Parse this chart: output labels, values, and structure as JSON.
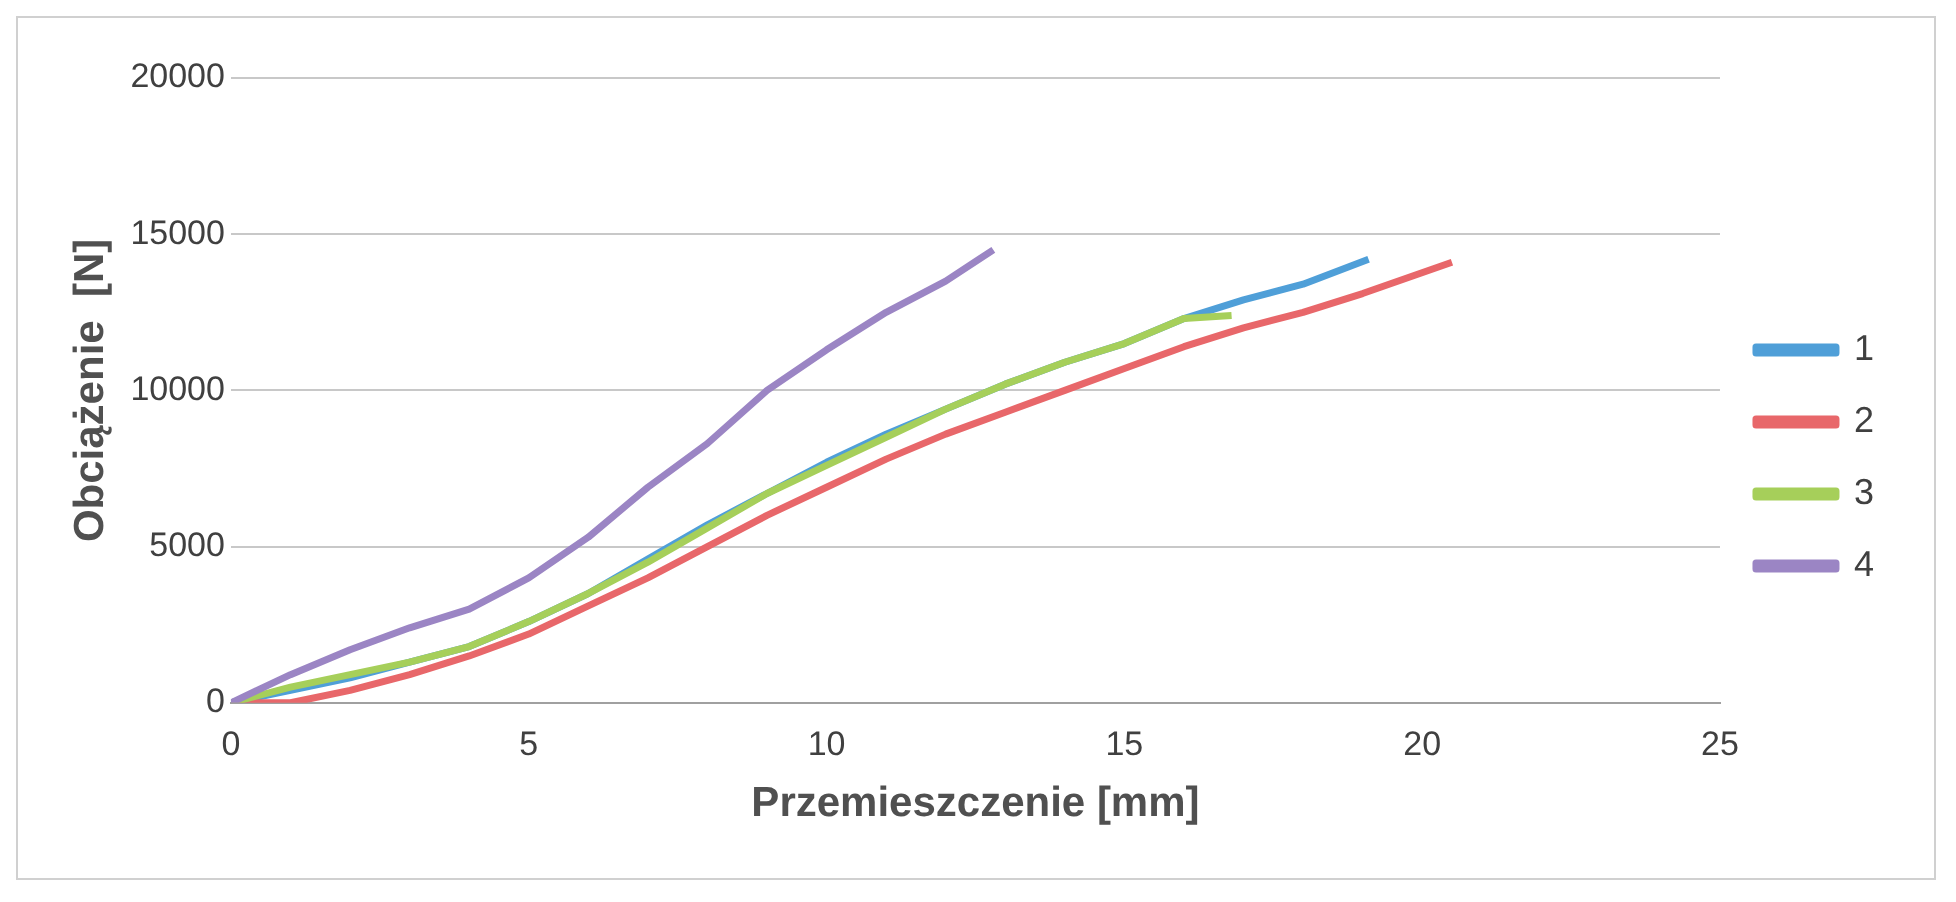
{
  "chart_data": {
    "type": "line",
    "xlabel": "Przemieszczenie [mm]",
    "ylabel": "Obciążenie  [N]",
    "xlim": [
      0,
      25
    ],
    "xticks": [
      0,
      5,
      10,
      15,
      20,
      25
    ],
    "ylim": [
      0,
      20000
    ],
    "yticks": [
      0,
      5000,
      10000,
      15000,
      20000
    ],
    "grid": "y",
    "legend": "right",
    "marker": "none",
    "series": [
      {
        "name": "1",
        "color": "#4f9fd8",
        "x": [
          0,
          1,
          2,
          3,
          4,
          5,
          6,
          7,
          8,
          9,
          10,
          11,
          12,
          13,
          14,
          15,
          16,
          17,
          18,
          19.1
        ],
        "values": [
          0,
          400,
          800,
          1300,
          1800,
          2600,
          3500,
          4600,
          5700,
          6700,
          7700,
          8600,
          9400,
          10200,
          10900,
          11500,
          12300,
          12900,
          13400,
          14200
        ]
      },
      {
        "name": "2",
        "color": "#e8676a",
        "x": [
          0,
          1,
          2,
          3,
          4,
          5,
          6,
          7,
          8,
          9,
          10,
          11,
          12,
          13,
          14,
          15,
          16,
          17,
          18,
          19,
          20.5
        ],
        "values": [
          0,
          0,
          400,
          900,
          1500,
          2200,
          3100,
          4000,
          5000,
          6000,
          6900,
          7800,
          8600,
          9300,
          10000,
          10700,
          11400,
          12000,
          12500,
          13100,
          14100
        ]
      },
      {
        "name": "3",
        "color": "#a6cf5a",
        "x": [
          0,
          1,
          2,
          3,
          4,
          5,
          6,
          7,
          8,
          9,
          10,
          11,
          12,
          13,
          14,
          15,
          16,
          16.8
        ],
        "values": [
          0,
          500,
          900,
          1300,
          1800,
          2600,
          3500,
          4500,
          5600,
          6700,
          7600,
          8500,
          9400,
          10200,
          10900,
          11500,
          12300,
          12400
        ]
      },
      {
        "name": "4",
        "color": "#9b85c4",
        "x": [
          0,
          1,
          2,
          3,
          4,
          5,
          6,
          7,
          8,
          9,
          10,
          11,
          12,
          12.8
        ],
        "values": [
          0,
          900,
          1700,
          2400,
          3000,
          4000,
          5300,
          6900,
          8300,
          10000,
          11300,
          12500,
          13500,
          14500
        ]
      }
    ]
  }
}
